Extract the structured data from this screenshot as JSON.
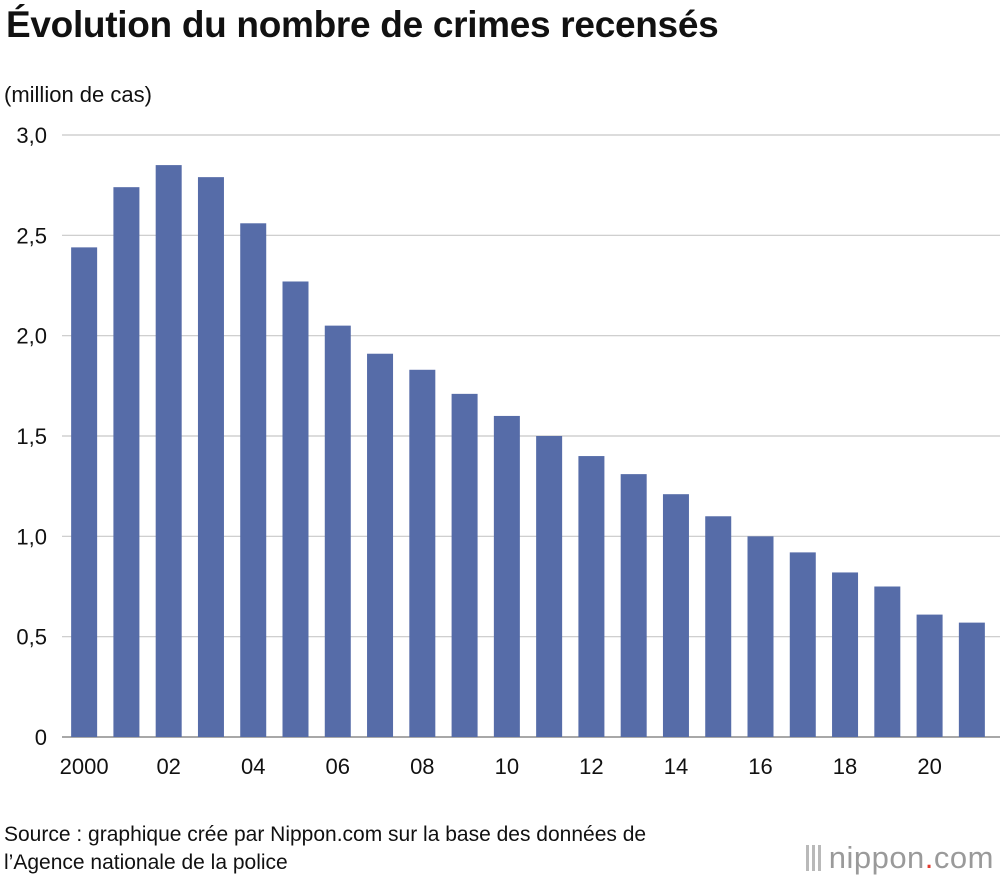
{
  "chart_data": {
    "type": "bar",
    "title": "Évolution du nombre de crimes recensés",
    "ylabel": "(million de cas)",
    "xlabel": "",
    "ylim": [
      0,
      3.0
    ],
    "yticks": [
      0,
      0.5,
      1.0,
      1.5,
      2.0,
      2.5,
      3.0
    ],
    "ytick_labels": [
      "0",
      "0,5",
      "1,0",
      "1,5",
      "2,0",
      "2,5",
      "3,0"
    ],
    "categories": [
      "2000",
      "2001",
      "2002",
      "2003",
      "2004",
      "2005",
      "2006",
      "2007",
      "2008",
      "2009",
      "2010",
      "2011",
      "2012",
      "2013",
      "2014",
      "2015",
      "2016",
      "2017",
      "2018",
      "2019",
      "2020",
      "2021"
    ],
    "xtick_labels": [
      "2000",
      "",
      "02",
      "",
      "04",
      "",
      "06",
      "",
      "08",
      "",
      "10",
      "",
      "12",
      "",
      "14",
      "",
      "16",
      "",
      "18",
      "",
      "20",
      ""
    ],
    "values": [
      2.44,
      2.74,
      2.85,
      2.79,
      2.56,
      2.27,
      2.05,
      1.91,
      1.83,
      1.71,
      1.6,
      1.5,
      1.4,
      1.31,
      1.21,
      1.1,
      1.0,
      0.92,
      0.82,
      0.75,
      0.61,
      0.57
    ],
    "bar_color": "#566ca8",
    "grid": true
  },
  "footer": {
    "source_line1": "Source : graphique crée par Nippon.com sur la base des données de",
    "source_line2": "l’Agence nationale de la police",
    "brand_main": "nippon",
    "brand_dot": ".",
    "brand_suffix": "com"
  }
}
